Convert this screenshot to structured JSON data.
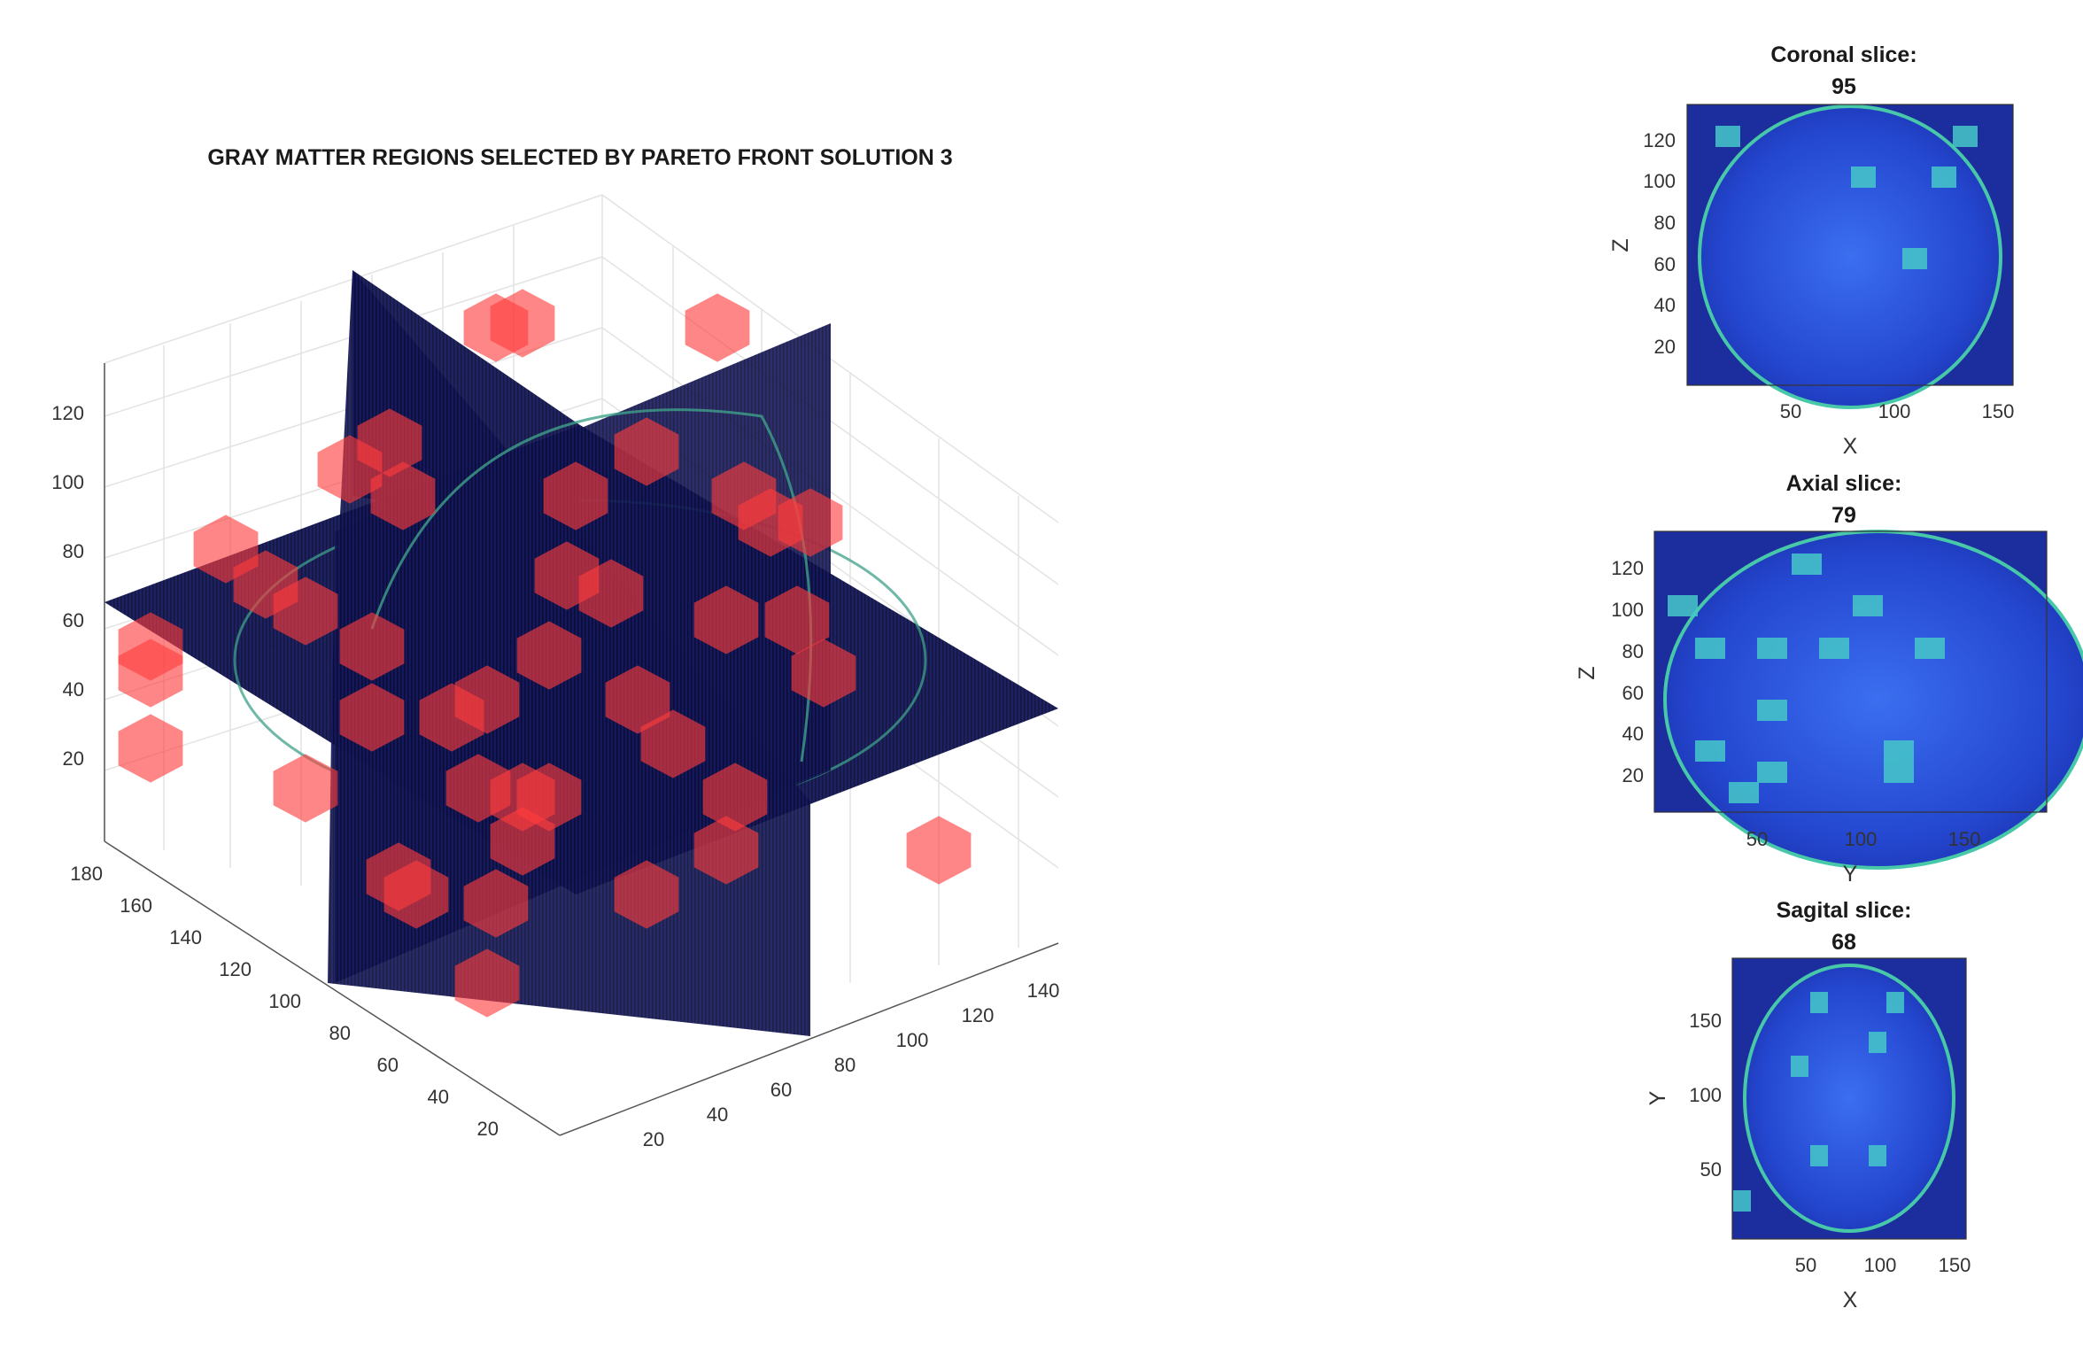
{
  "main": {
    "title": "GRAY MATTER REGIONS SELECTED BY PARETO FRONT SOLUTION 3",
    "z_ticks": [
      "120",
      "100",
      "80",
      "60",
      "40",
      "20"
    ],
    "y_ticks": [
      "180",
      "160",
      "140",
      "120",
      "100",
      "80",
      "60",
      "40",
      "20"
    ],
    "x_ticks": [
      "20",
      "40",
      "60",
      "80",
      "100",
      "120",
      "140"
    ]
  },
  "coronal": {
    "title_line1": "Coronal slice:",
    "title_line2": "95",
    "xlabel": "X",
    "ylabel": "Z",
    "x_ticks": [
      "50",
      "100",
      "150"
    ],
    "y_ticks": [
      "120",
      "100",
      "80",
      "60",
      "40",
      "20"
    ]
  },
  "axial": {
    "title_line1": "Axial slice:",
    "title_line2": "79",
    "xlabel": "Y",
    "ylabel": "Z",
    "x_ticks": [
      "50",
      "100",
      "150"
    ],
    "y_ticks": [
      "120",
      "100",
      "80",
      "60",
      "40",
      "20"
    ]
  },
  "sagital": {
    "title_line1": "Sagital slice:",
    "title_line2": "68",
    "xlabel": "X",
    "ylabel": "Y",
    "x_ticks": [
      "50",
      "100",
      "150"
    ],
    "y_ticks": [
      "150",
      "100",
      "50"
    ]
  },
  "colors": {
    "region": "#ff3b3b",
    "slice_dark": "#10124a",
    "slice_brain": "#2a4fd8",
    "highlight": "#46c8c8"
  }
}
